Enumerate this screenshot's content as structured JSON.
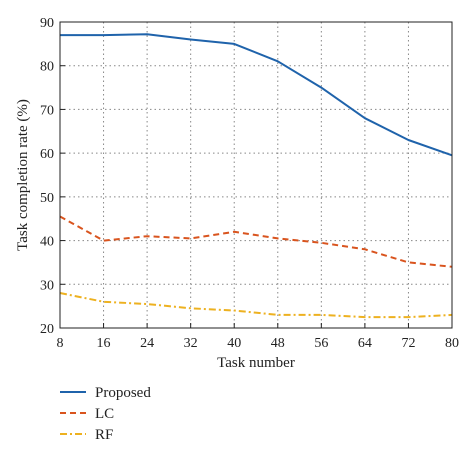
{
  "chart_data": {
    "type": "line",
    "xlabel": "Task number",
    "ylabel": "Task completion rate (%)",
    "x": [
      8,
      16,
      24,
      32,
      40,
      48,
      56,
      64,
      72,
      80
    ],
    "xlim": [
      8,
      80
    ],
    "ylim": [
      20,
      90
    ],
    "xticks": [
      "8",
      "16",
      "24",
      "32",
      "40",
      "48",
      "56",
      "64",
      "72",
      "80"
    ],
    "yticks": [
      "20",
      "30",
      "40",
      "50",
      "60",
      "70",
      "80",
      "90"
    ],
    "grid": true,
    "legend_position": "bottom-left, below plot",
    "series": [
      {
        "name": "Proposed",
        "color": "#1f63ab",
        "style": "solid",
        "values": [
          87,
          87,
          87.2,
          86,
          85,
          81,
          75,
          68,
          63,
          59.5
        ]
      },
      {
        "name": "LC",
        "color": "#d9541e",
        "style": "dashed",
        "values": [
          45.5,
          40,
          41,
          40.5,
          42,
          40.5,
          39.5,
          38,
          35,
          34
        ]
      },
      {
        "name": "RF",
        "color": "#edb120",
        "style": "dashdot",
        "values": [
          28,
          26,
          25.5,
          24.5,
          24,
          23,
          23,
          22.5,
          22.5,
          23
        ]
      }
    ]
  }
}
